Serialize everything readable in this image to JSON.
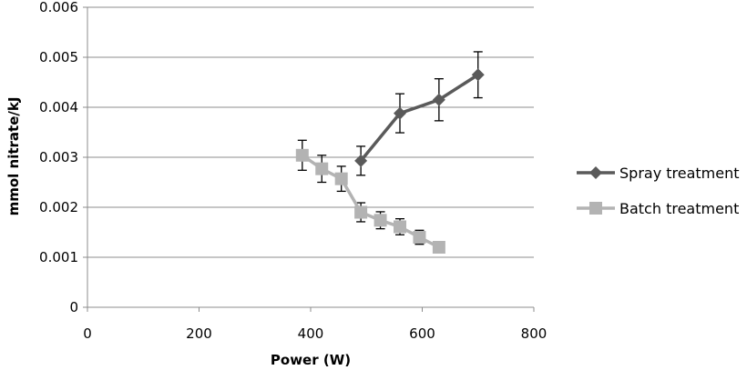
{
  "chart_data": {
    "type": "line",
    "xlabel": "Power (W)",
    "ylabel": "mmol nitrate/kJ",
    "xlim": [
      0,
      800
    ],
    "ylim": [
      0,
      0.006
    ],
    "x_ticks": [
      0,
      200,
      400,
      600,
      800
    ],
    "y_ticks": [
      0,
      0.001,
      0.002,
      0.003,
      0.004,
      0.005,
      0.006
    ],
    "x_tick_labels": [
      "0",
      "200",
      "400",
      "600",
      "800"
    ],
    "y_tick_labels": [
      "0",
      "0.001",
      "0.002",
      "0.003",
      "0.004",
      "0.005",
      "0.006"
    ],
    "grid": "horizontal",
    "legend_position": "right",
    "series": [
      {
        "name": "Spray treatment",
        "marker": "diamond",
        "color": "#5a5a5a",
        "x": [
          490,
          560,
          630,
          700
        ],
        "y": [
          0.00293,
          0.00388,
          0.00415,
          0.00465
        ],
        "error": [
          0.00029,
          0.00039,
          0.00042,
          0.00046
        ]
      },
      {
        "name": "Batch treatment",
        "marker": "square",
        "color": "#b3b3b3",
        "x": [
          385,
          420,
          455,
          490,
          525,
          560,
          595,
          630
        ],
        "y": [
          0.00304,
          0.00277,
          0.00257,
          0.0019,
          0.00174,
          0.00161,
          0.0014,
          0.0012
        ],
        "error": [
          0.0003,
          0.00027,
          0.00025,
          0.00019,
          0.00017,
          0.00016,
          0.00014,
          0
        ]
      }
    ]
  }
}
